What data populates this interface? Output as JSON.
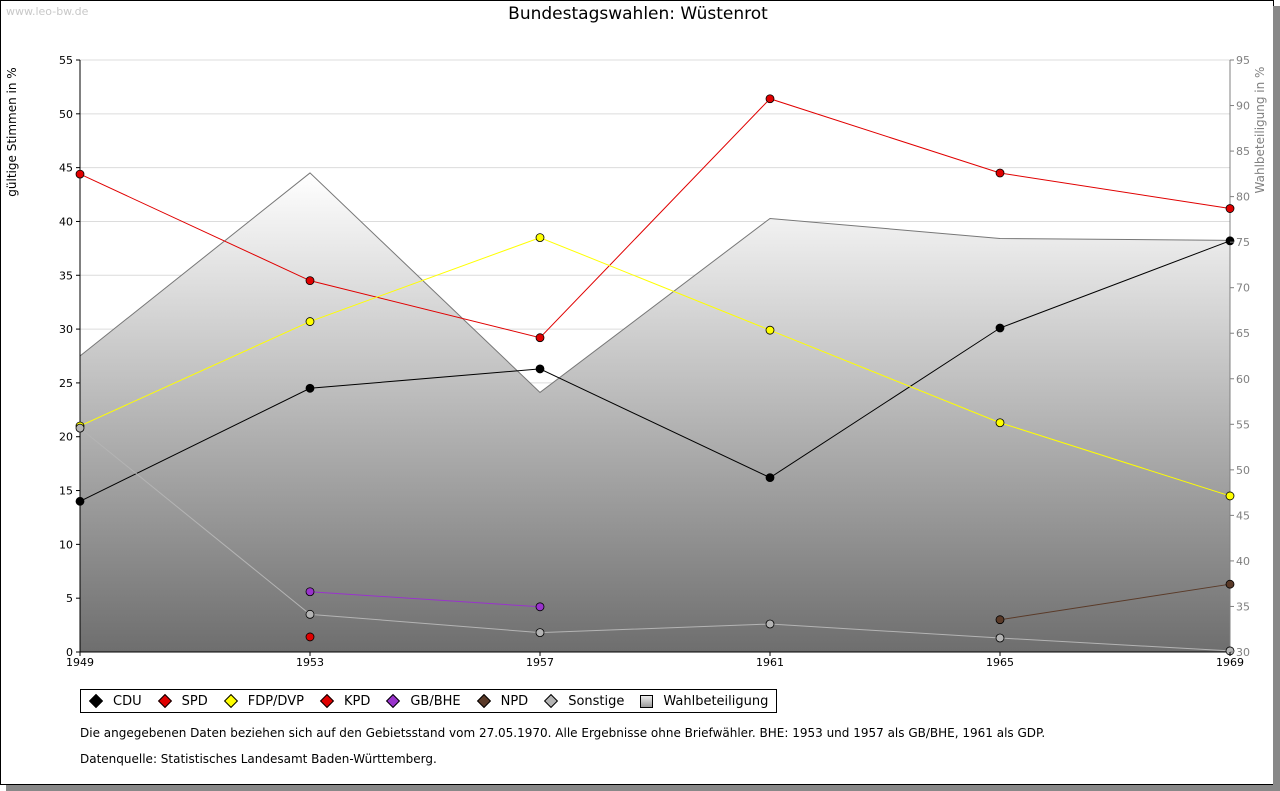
{
  "watermark": "www.leo-bw.de",
  "title": "Bundestagswahlen: Wüstenrot",
  "footnote": "Die angegebenen Daten beziehen sich auf den Gebietsstand vom 27.05.1970. Alle Ergebnisse ohne Briefwähler. BHE: 1953 und 1957 als GB/BHE, 1961 als GDP.",
  "source": "Datenquelle: Statistisches Landesamt Baden-Württemberg.",
  "chart_data": {
    "type": "line",
    "title": "Bundestagswahlen: Wüstenrot",
    "x": [
      "1949",
      "1953",
      "1957",
      "1961",
      "1965",
      "1969"
    ],
    "xlabel": "",
    "ylabel": "gültige Stimmen in %",
    "y2label": "Wahlbeteiligung in %",
    "ylim": [
      0,
      55
    ],
    "y2lim": [
      30,
      95
    ],
    "yticks": [
      0,
      5,
      10,
      15,
      20,
      25,
      30,
      35,
      40,
      45,
      50,
      55
    ],
    "y2ticks": [
      30,
      35,
      40,
      45,
      50,
      55,
      60,
      65,
      70,
      75,
      80,
      85,
      90,
      95
    ],
    "grid": true,
    "legend_position": "bottom",
    "series": [
      {
        "name": "CDU",
        "color": "#000000",
        "values": [
          14.0,
          24.5,
          26.3,
          16.2,
          30.1,
          38.2
        ]
      },
      {
        "name": "SPD",
        "color": "#e00000",
        "values": [
          44.4,
          34.5,
          29.2,
          51.4,
          44.5,
          41.2
        ]
      },
      {
        "name": "FDP/DVP",
        "color": "#ffff00",
        "values": [
          21.0,
          30.7,
          38.5,
          29.9,
          21.3,
          14.5
        ]
      },
      {
        "name": "KPD",
        "color": "#e00000",
        "values": [
          null,
          1.4,
          null,
          null,
          null,
          null
        ]
      },
      {
        "name": "GB/BHE",
        "color": "#9933cc",
        "values": [
          null,
          5.6,
          4.2,
          null,
          null,
          null
        ]
      },
      {
        "name": "NPD",
        "color": "#5a3a28",
        "values": [
          null,
          null,
          null,
          null,
          3.0,
          6.3
        ]
      },
      {
        "name": "Sonstige",
        "color": "#b4b4b4",
        "values": [
          20.8,
          3.5,
          1.8,
          2.6,
          1.3,
          0.1
        ]
      }
    ],
    "turnout": {
      "name": "Wahlbeteiligung",
      "axis": "right",
      "values": [
        62.5,
        82.6,
        58.5,
        77.6,
        75.4,
        75.2
      ]
    }
  }
}
